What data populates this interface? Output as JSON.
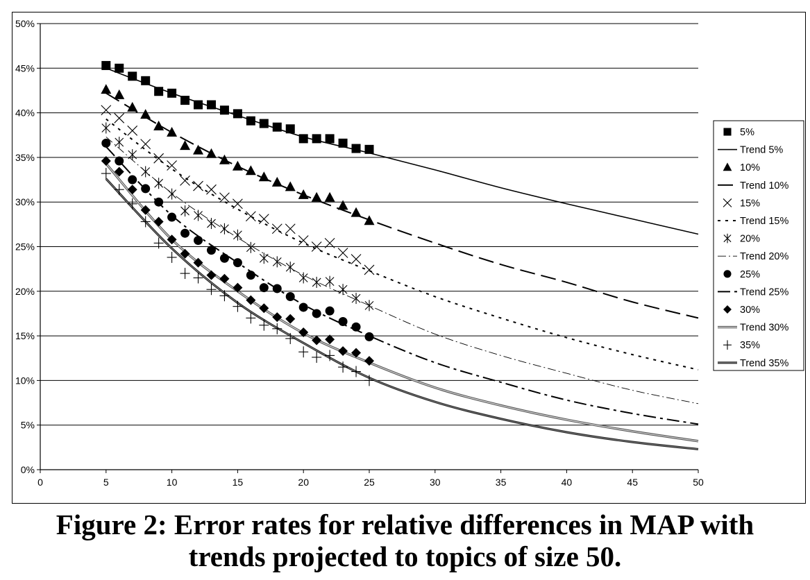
{
  "caption": {
    "line1": "Figure 2: Error rates for relative differences in MAP with",
    "line2": "trends projected to topics of size 50."
  },
  "chart_data": {
    "type": "scatter",
    "title": "",
    "xlabel": "",
    "ylabel": "",
    "xlim": [
      0,
      50
    ],
    "ylim": [
      0,
      50
    ],
    "xticks": [
      "0",
      "5",
      "10",
      "15",
      "20",
      "25",
      "30",
      "35",
      "40",
      "45",
      "50"
    ],
    "yticks": [
      "0%",
      "5%",
      "10%",
      "15%",
      "20%",
      "25%",
      "30%",
      "35%",
      "40%",
      "45%",
      "50%"
    ],
    "grid": "horizontal",
    "legend_position": "right",
    "legend": [
      "5%",
      "Trend 5%",
      "10%",
      "Trend 10%",
      "15%",
      "Trend 15%",
      "20%",
      "Trend 20%",
      "25%",
      "Trend 25%",
      "30%",
      "Trend 30%",
      "35%",
      "Trend 35%"
    ],
    "series": [
      {
        "name": "5%",
        "marker": "square",
        "x": [
          5,
          6,
          7,
          8,
          9,
          10,
          11,
          12,
          13,
          14,
          15,
          16,
          17,
          18,
          19,
          20,
          21,
          22,
          23,
          24,
          25
        ],
        "y": [
          45.3,
          45.0,
          44.1,
          43.6,
          42.4,
          42.2,
          41.4,
          40.9,
          40.9,
          40.3,
          39.9,
          39.1,
          38.8,
          38.4,
          38.2,
          37.1,
          37.1,
          37.1,
          36.6,
          36.0,
          35.9
        ]
      },
      {
        "name": "10%",
        "marker": "triangle",
        "x": [
          5,
          6,
          7,
          8,
          9,
          10,
          11,
          12,
          13,
          14,
          15,
          16,
          17,
          18,
          19,
          20,
          21,
          22,
          23,
          24,
          25
        ],
        "y": [
          42.6,
          42.0,
          40.6,
          39.8,
          38.5,
          37.8,
          36.3,
          35.8,
          35.4,
          34.7,
          34.0,
          33.5,
          32.8,
          32.2,
          31.7,
          30.8,
          30.5,
          30.5,
          29.6,
          28.8,
          27.9
        ]
      },
      {
        "name": "15%",
        "marker": "x",
        "x": [
          5,
          6,
          7,
          8,
          9,
          10,
          11,
          12,
          13,
          14,
          15,
          16,
          17,
          18,
          19,
          20,
          21,
          22,
          23,
          24,
          25
        ],
        "y": [
          40.3,
          39.4,
          38.0,
          36.5,
          34.9,
          34.1,
          32.4,
          31.8,
          31.4,
          30.5,
          29.8,
          28.4,
          28.1,
          27.0,
          27.0,
          25.7,
          25.0,
          25.4,
          24.3,
          23.6,
          22.4
        ]
      },
      {
        "name": "20%",
        "marker": "asterisk",
        "x": [
          5,
          6,
          7,
          8,
          9,
          10,
          11,
          12,
          13,
          14,
          15,
          16,
          17,
          18,
          19,
          20,
          21,
          22,
          23,
          24,
          25
        ],
        "y": [
          38.3,
          36.7,
          35.3,
          33.4,
          32.1,
          30.9,
          29.0,
          28.5,
          27.6,
          27.0,
          26.3,
          24.9,
          23.7,
          23.3,
          22.7,
          21.5,
          21.0,
          21.1,
          20.2,
          19.2,
          18.4
        ]
      },
      {
        "name": "25%",
        "marker": "circle",
        "x": [
          5,
          6,
          7,
          8,
          9,
          10,
          11,
          12,
          13,
          14,
          15,
          16,
          17,
          18,
          19,
          20,
          21,
          22,
          23,
          24,
          25
        ],
        "y": [
          36.6,
          34.6,
          32.5,
          31.5,
          30.0,
          28.3,
          26.5,
          25.7,
          24.6,
          23.7,
          23.2,
          21.8,
          20.4,
          20.3,
          19.4,
          18.2,
          17.5,
          17.8,
          16.6,
          16.0,
          14.9
        ]
      },
      {
        "name": "30%",
        "marker": "diamond",
        "x": [
          5,
          6,
          7,
          8,
          9,
          10,
          11,
          12,
          13,
          14,
          15,
          16,
          17,
          18,
          19,
          20,
          21,
          22,
          23,
          24,
          25
        ],
        "y": [
          34.6,
          33.4,
          31.4,
          29.1,
          27.8,
          25.8,
          24.2,
          23.2,
          21.8,
          21.4,
          20.4,
          19.0,
          18.1,
          17.1,
          16.9,
          15.4,
          14.5,
          14.6,
          13.3,
          13.1,
          12.2
        ]
      },
      {
        "name": "35%",
        "marker": "plus",
        "x": [
          5,
          6,
          7,
          8,
          9,
          10,
          11,
          12,
          13,
          14,
          15,
          16,
          17,
          18,
          19,
          20,
          21,
          22,
          23,
          24,
          25
        ],
        "y": [
          33.2,
          31.4,
          29.8,
          27.8,
          25.4,
          23.8,
          22.0,
          21.5,
          20.2,
          19.5,
          18.3,
          17.0,
          16.2,
          15.8,
          14.7,
          13.2,
          12.6,
          12.8,
          11.5,
          11.0,
          10.0
        ]
      }
    ],
    "trends": [
      {
        "name": "Trend 5%",
        "style": "solid",
        "x": [
          5,
          10,
          15,
          20,
          25,
          30,
          35,
          40,
          45,
          50
        ],
        "y": [
          45.0,
          42.2,
          39.7,
          37.3,
          35.5,
          33.6,
          31.6,
          29.8,
          28.1,
          26.4
        ]
      },
      {
        "name": "Trend 10%",
        "style": "longdash",
        "x": [
          5,
          10,
          15,
          20,
          25,
          30,
          35,
          40,
          45,
          50
        ],
        "y": [
          42.2,
          37.8,
          34.0,
          30.8,
          28.0,
          25.4,
          23.0,
          21.0,
          18.8,
          17.0
        ]
      },
      {
        "name": "Trend 15%",
        "style": "dotted",
        "x": [
          5,
          10,
          15,
          20,
          25,
          30,
          35,
          40,
          45,
          50
        ],
        "y": [
          39.3,
          33.7,
          29.2,
          25.4,
          22.3,
          19.4,
          17.0,
          14.8,
          12.9,
          11.2
        ]
      },
      {
        "name": "Trend 20%",
        "style": "dashdot-thin",
        "x": [
          5,
          10,
          15,
          20,
          25,
          30,
          35,
          40,
          45,
          50
        ],
        "y": [
          37.3,
          31.0,
          26.0,
          21.8,
          18.4,
          15.2,
          12.8,
          10.8,
          8.9,
          7.4
        ]
      },
      {
        "name": "Trend 25%",
        "style": "dashdot",
        "x": [
          5,
          10,
          15,
          20,
          25,
          30,
          35,
          40,
          45,
          50
        ],
        "y": [
          36.2,
          28.5,
          23.2,
          18.5,
          15.0,
          12.0,
          9.8,
          7.8,
          6.3,
          5.1
        ]
      },
      {
        "name": "Trend 30%",
        "style": "gray-double",
        "x": [
          5,
          10,
          15,
          20,
          25,
          30,
          35,
          40,
          45,
          50
        ],
        "y": [
          34.3,
          25.8,
          20.0,
          15.3,
          12.0,
          9.2,
          7.2,
          5.6,
          4.3,
          3.2
        ]
      },
      {
        "name": "Trend 35%",
        "style": "dark-double",
        "x": [
          5,
          10,
          15,
          20,
          25,
          30,
          35,
          40,
          45,
          50
        ],
        "y": [
          32.6,
          24.8,
          18.7,
          14.2,
          10.3,
          7.6,
          5.7,
          4.2,
          3.1,
          2.3
        ]
      }
    ]
  }
}
